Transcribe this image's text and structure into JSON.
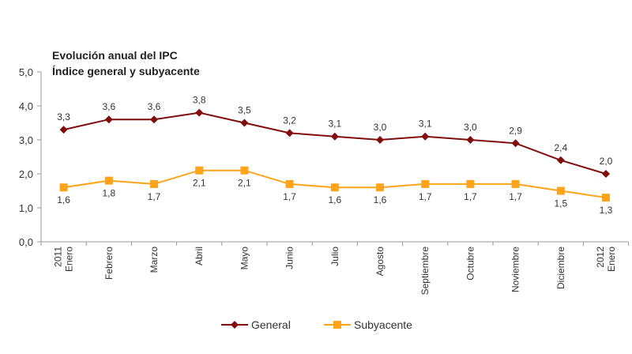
{
  "chart_data": {
    "type": "line",
    "title": "Evolución anual del IPC",
    "subtitle": "Índice general y subyacente",
    "xlabel": "",
    "ylabel": "",
    "categories": [
      "2011 Enero",
      "Febrero",
      "Marzo",
      "Abril",
      "Mayo",
      "Junio",
      "Julio",
      "Agosto",
      "Septiembre",
      "Octubre",
      "Noviembre",
      "Diciembre",
      "2012 Enero"
    ],
    "ylim": [
      0,
      5
    ],
    "yticks": [
      "0,0",
      "1,0",
      "2,0",
      "3,0",
      "4,0",
      "5,0"
    ],
    "grid": false,
    "legend_position": "bottom",
    "series": [
      {
        "name": "General",
        "color": "#800c0c",
        "marker": "diamond",
        "values": [
          3.3,
          3.6,
          3.6,
          3.8,
          3.5,
          3.2,
          3.1,
          3.0,
          3.1,
          3.0,
          2.9,
          2.4,
          2.0
        ],
        "labels": [
          "3,3",
          "3,6",
          "3,6",
          "3,8",
          "3,5",
          "3,2",
          "3,1",
          "3,0",
          "3,1",
          "3,0",
          "2,9",
          "2,4",
          "2,0"
        ]
      },
      {
        "name": "Subyacente",
        "color": "#ffa31a",
        "marker": "square",
        "values": [
          1.6,
          1.8,
          1.7,
          2.1,
          2.1,
          1.7,
          1.6,
          1.6,
          1.7,
          1.7,
          1.7,
          1.5,
          1.3
        ],
        "labels": [
          "1,6",
          "1,8",
          "1,7",
          "2,1",
          "2,1",
          "1,7",
          "1,6",
          "1,6",
          "1,7",
          "1,7",
          "1,7",
          "1,5",
          "1,3"
        ]
      }
    ]
  }
}
